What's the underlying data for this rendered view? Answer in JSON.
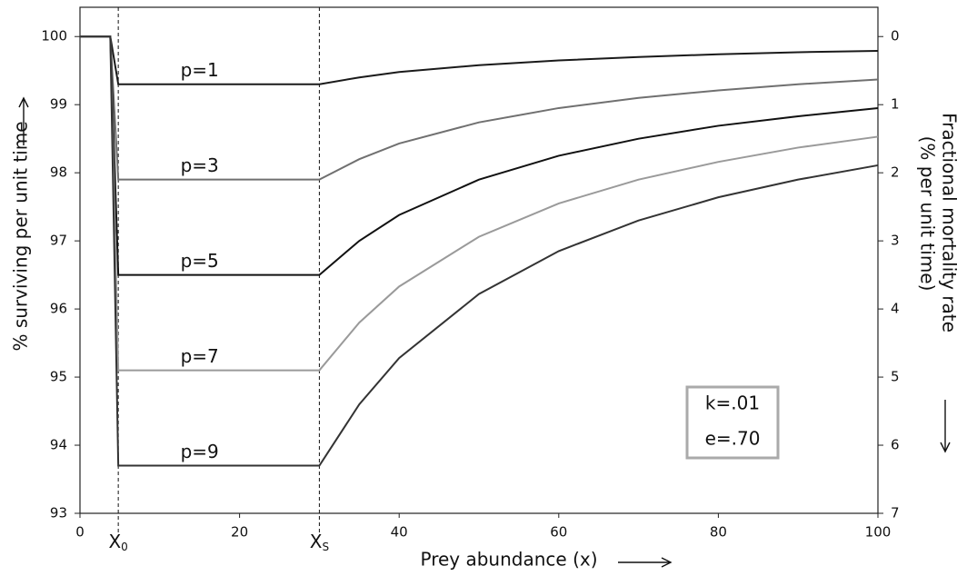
{
  "chart_data": {
    "type": "line",
    "xlabel": "Prey abundance (x)",
    "ylabel": "% surviving per unit time",
    "y2label": [
      "Fractional mortality rate",
      "(% per unit time)"
    ],
    "x": [
      0,
      3.8,
      4.8,
      30,
      35,
      40,
      50,
      60,
      70,
      80,
      90,
      100
    ],
    "series": [
      {
        "name": "p=1",
        "color": "#1a1a1a",
        "values": [
          100,
          100,
          99.3,
          99.3,
          99.4,
          99.48,
          99.58,
          99.65,
          99.7,
          99.74,
          99.77,
          99.79
        ]
      },
      {
        "name": "p=3",
        "color": "#707070",
        "values": [
          100,
          100,
          97.9,
          97.9,
          98.2,
          98.43,
          98.74,
          98.95,
          99.1,
          99.21,
          99.3,
          99.37
        ]
      },
      {
        "name": "p=5",
        "color": "#111111",
        "values": [
          100,
          100,
          96.5,
          96.5,
          97.0,
          97.38,
          97.9,
          98.25,
          98.5,
          98.69,
          98.83,
          98.95
        ]
      },
      {
        "name": "p=7",
        "color": "#9a9a9a",
        "values": [
          100,
          100,
          95.1,
          95.1,
          95.8,
          96.33,
          97.06,
          97.55,
          97.9,
          98.16,
          98.37,
          98.53
        ]
      },
      {
        "name": "p=9",
        "color": "#333333",
        "values": [
          100,
          100,
          93.7,
          93.7,
          94.6,
          95.28,
          96.22,
          96.85,
          97.3,
          97.64,
          97.9,
          98.11
        ]
      }
    ],
    "xlim": [
      0,
      100
    ],
    "xticks": [
      0,
      20,
      40,
      60,
      80,
      100
    ],
    "x_markers": [
      {
        "value": 4.8,
        "label": "X",
        "subscript": "0"
      },
      {
        "value": 30,
        "label": "X",
        "subscript": "S"
      }
    ],
    "ylim": [
      93,
      100.43
    ],
    "yticks": [
      93,
      94,
      95,
      96,
      97,
      98,
      99,
      100
    ],
    "y2lim": [
      7,
      -0.43
    ],
    "y2ticks": [
      0,
      1,
      2,
      3,
      4,
      5,
      6,
      7
    ],
    "annotations": [
      "k=.01",
      "e=.70"
    ]
  }
}
